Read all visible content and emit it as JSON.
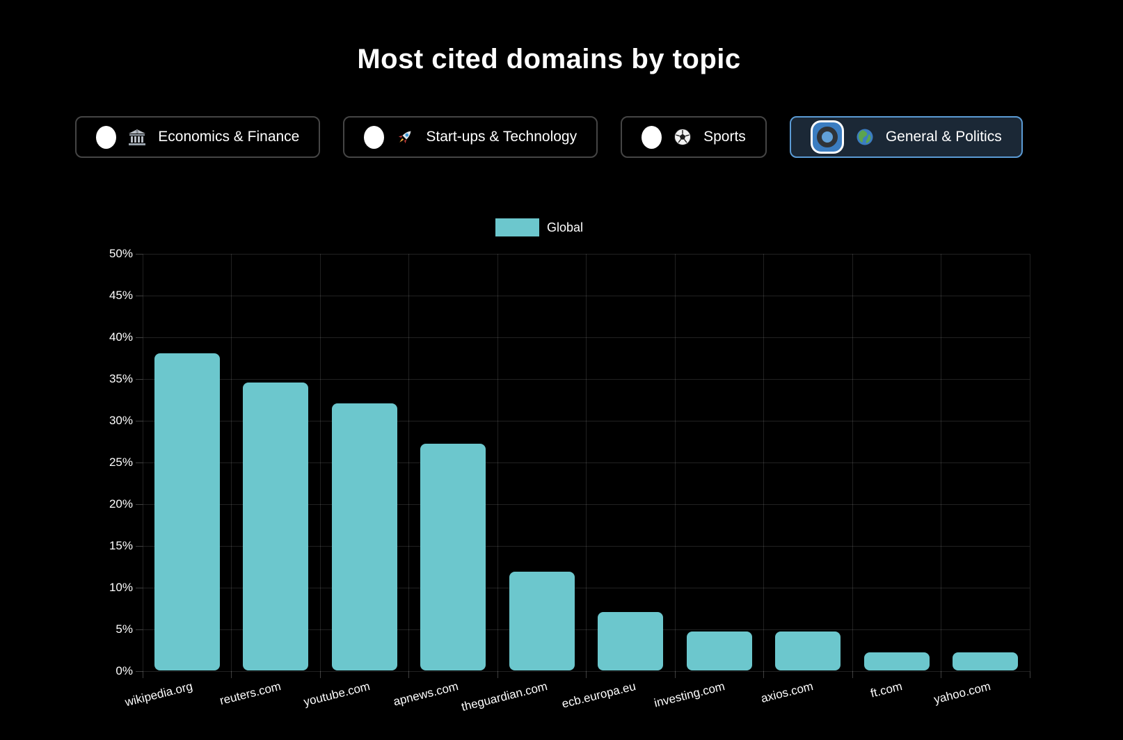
{
  "page_title": "Most cited domains by topic",
  "topic_selector": {
    "buttons": [
      {
        "label": "Economics & Finance",
        "emoji": "🏦",
        "icon": "bank-icon",
        "selected": false
      },
      {
        "label": "Start-ups & Technology",
        "emoji": "🚀",
        "icon": "rocket-icon",
        "selected": false
      },
      {
        "label": "Sports",
        "emoji": "⚽",
        "icon": "soccer-ball-icon",
        "selected": false
      },
      {
        "label": "General & Politics",
        "emoji": "🌍",
        "icon": "globe-icon",
        "selected": true
      }
    ]
  },
  "chart_data": {
    "type": "bar",
    "title": "Most cited domains by topic",
    "legend": [
      {
        "label": "Global",
        "color": "#6cc7cd"
      }
    ],
    "legend_position": "top",
    "categories": [
      "wikipedia.org",
      "reuters.com",
      "youtube.com",
      "apnews.com",
      "theguardian.com",
      "ecb.europa.eu",
      "investing.com",
      "axios.com",
      "ft.com",
      "yahoo.com"
    ],
    "series": [
      {
        "name": "Global",
        "values": [
          38,
          34.5,
          32,
          27.2,
          11.8,
          7,
          4.7,
          4.7,
          2.2,
          2.2
        ]
      }
    ],
    "xlabel": "",
    "ylabel": "",
    "ylim": [
      0,
      50
    ],
    "ytick_step": 5,
    "ytick_suffix": "%",
    "grid": true,
    "bar_color": "#6cc7cd",
    "x_label_rotation_deg": -14
  },
  "colors": {
    "background": "#000000",
    "bar": "#6cc7cd",
    "text": "#ffffff",
    "grid": "rgba(255,255,255,0.13)",
    "button_border": "#454545",
    "selected_button_bg": "#1b2836",
    "selected_button_border": "#5b9bd5",
    "radio_ring_blue": "#3b7dc1",
    "radio_dot_blue": "#61a0d8",
    "radio_dark_ring": "#2f3338"
  }
}
